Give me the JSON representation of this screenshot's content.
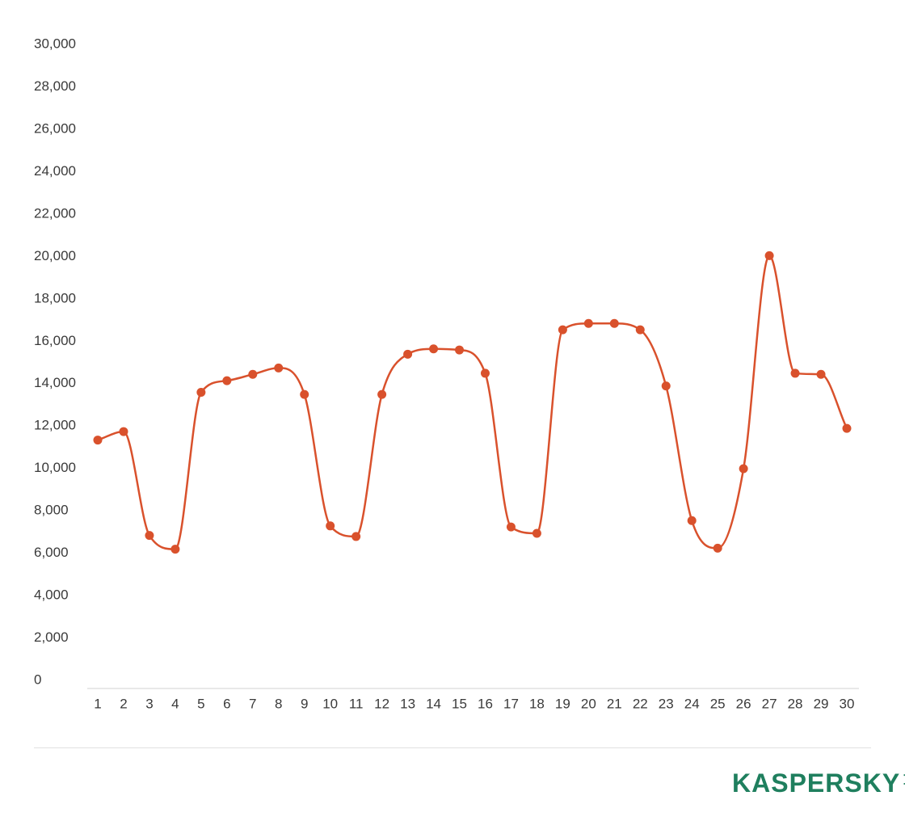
{
  "chart_data": {
    "type": "line",
    "smooth": true,
    "color": "#d9512c",
    "categories": [
      "1",
      "2",
      "3",
      "4",
      "5",
      "6",
      "7",
      "8",
      "9",
      "10",
      "11",
      "12",
      "13",
      "14",
      "15",
      "16",
      "17",
      "18",
      "19",
      "20",
      "21",
      "22",
      "23",
      "24",
      "25",
      "26",
      "27",
      "28",
      "29",
      "30"
    ],
    "series": [
      {
        "values": [
          11300,
          11700,
          6800,
          6150,
          13550,
          14100,
          14400,
          14700,
          13450,
          7250,
          6750,
          13450,
          15350,
          15600,
          15550,
          14450,
          7200,
          6900,
          16500,
          16800,
          16800,
          16500,
          13850,
          7500,
          6200,
          9950,
          20000,
          14450,
          14400,
          11850
        ]
      }
    ],
    "ylim": [
      0,
      30000
    ],
    "yticks": [
      0,
      2000,
      4000,
      6000,
      8000,
      10000,
      12000,
      14000,
      16000,
      18000,
      20000,
      22000,
      24000,
      26000,
      28000,
      30000
    ],
    "grid": false,
    "legend": "none"
  },
  "brand": {
    "logo_text": "KASPERSKY",
    "logo_suffix": "lab",
    "color": "#1f7f5e"
  }
}
